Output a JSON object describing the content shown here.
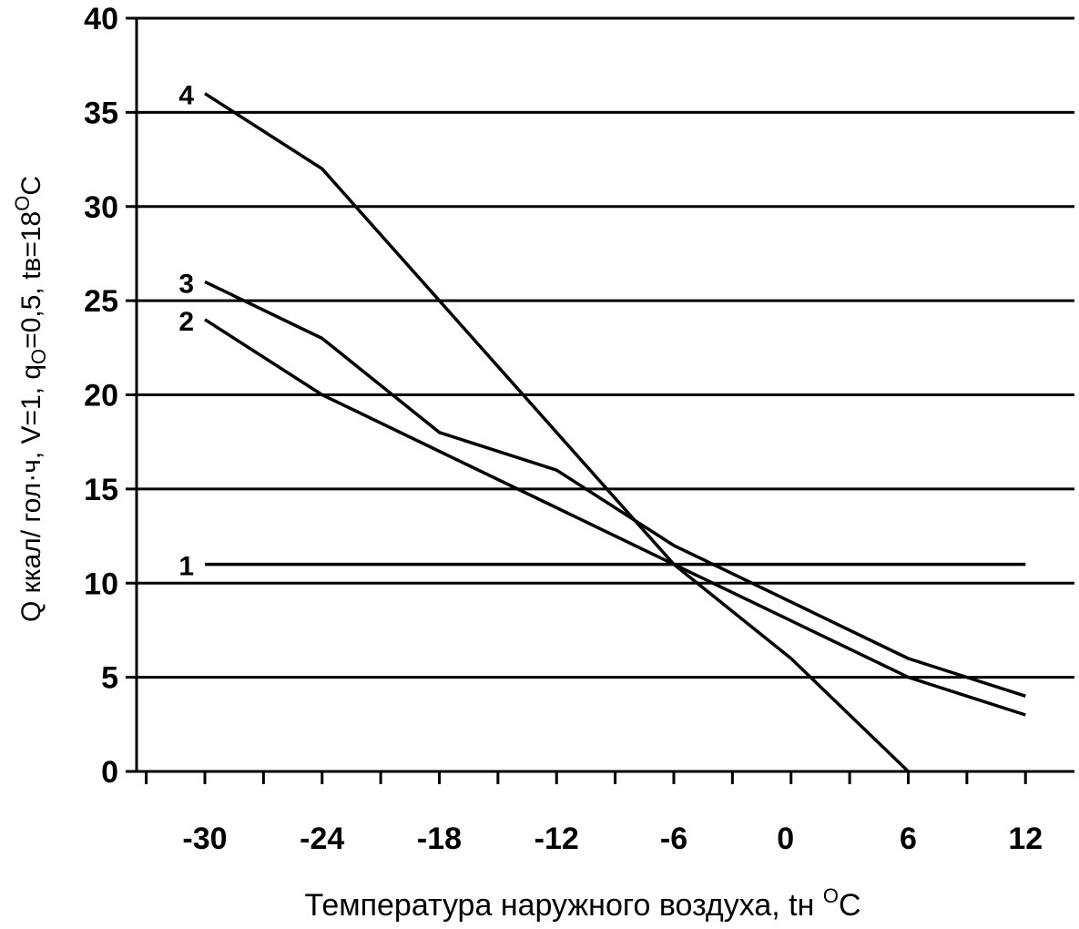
{
  "chart_data": {
    "type": "line",
    "xlabel": {
      "text": "Температура наружного воздуха, tн ",
      "sup": "O",
      "tail": "C"
    },
    "ylabel": {
      "part1": "Q ккал/ гол·ч,   V=1, q",
      "sub": "O",
      "part2": "=0,5, tв=18",
      "sup": "O",
      "part3": "C"
    },
    "xlim": [
      -34,
      14
    ],
    "ylim": [
      0,
      40
    ],
    "x_ticks": [
      -30,
      -24,
      -18,
      -12,
      -6,
      0,
      6,
      12
    ],
    "y_ticks": [
      0,
      5,
      10,
      15,
      20,
      25,
      30,
      35,
      40
    ],
    "grid": "horizontal",
    "series": [
      {
        "name": "1",
        "points": [
          [
            -30,
            11
          ],
          [
            12,
            11
          ]
        ]
      },
      {
        "name": "2",
        "points": [
          [
            -30,
            24
          ],
          [
            -24,
            20
          ],
          [
            -18,
            17
          ],
          [
            -12,
            14
          ],
          [
            -6,
            11
          ],
          [
            0,
            8
          ],
          [
            6,
            5
          ],
          [
            12,
            3
          ]
        ]
      },
      {
        "name": "3",
        "points": [
          [
            -30,
            26
          ],
          [
            -24,
            23
          ],
          [
            -18,
            18
          ],
          [
            -12,
            16
          ],
          [
            -6,
            12
          ],
          [
            0,
            9
          ],
          [
            6,
            6
          ],
          [
            12,
            4
          ]
        ]
      },
      {
        "name": "4",
        "points": [
          [
            -30,
            36
          ],
          [
            -24,
            32
          ],
          [
            -18,
            25
          ],
          [
            -12,
            18
          ],
          [
            -6,
            11
          ],
          [
            0,
            6
          ],
          [
            3,
            3
          ],
          [
            6,
            0
          ]
        ]
      }
    ],
    "colors": {
      "line": "#000000",
      "grid": "#000000",
      "background": "#ffffff"
    }
  }
}
